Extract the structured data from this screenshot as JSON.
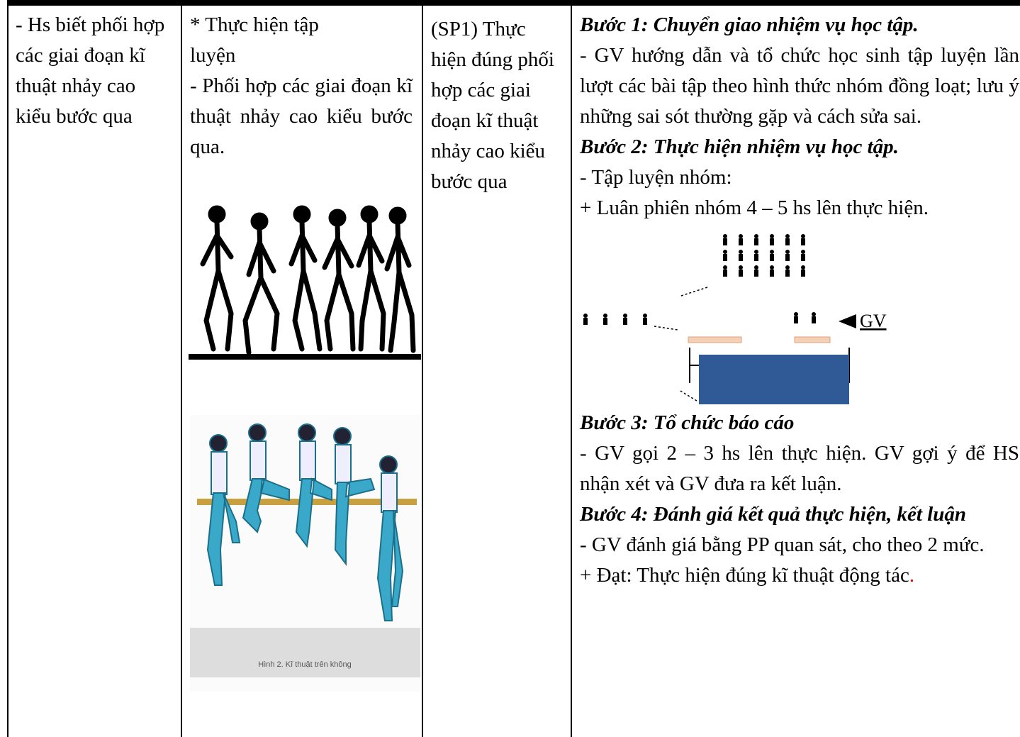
{
  "table": {
    "rows": [
      {
        "objective": "- Hs biết phối hợp các giai đoạn kĩ thuật nhảy cao kiểu bước qua",
        "content": {
          "heading": "* Thực hiện tập luyện",
          "text": "- Phối hợp các giai đoạn kĩ thuật nhảy cao kiểu bước qua.",
          "figure_caption": "Hình 2. Kĩ thuật trên không"
        },
        "product": "(SP1) Thực hiện đúng phối hợp các giai đoạn kĩ thuật nhảy cao kiểu bước qua",
        "steps": [
          {
            "heading": "Bước 1: Chuyển giao nhiệm vụ học tập.",
            "items": [
              "- GV hướng dẫn và tổ chức học sinh tập luyện lần lượt các bài tập theo hình thức nhóm đồng loạt; lưu ý những sai sót thường gặp và cách sửa sai."
            ]
          },
          {
            "heading": "Bước 2: Thực hiện nhiệm vụ học tập.",
            "items": [
              "- Tập luyện nhóm:",
              "+ Luân phiên nhóm  4 – 5 hs lên thực hiện."
            ],
            "diagram_label": "GV"
          },
          {
            "heading": "Bước 3: Tổ chức báo cáo",
            "items": [
              "- GV gọi 2 – 3 hs lên thực hiện. GV gợi ý để HS nhận xét và GV đưa ra kết luận."
            ]
          },
          {
            "heading": "Bước 4: Đánh giá kết quả thực hiện, kết luận",
            "items": [
              " - GV đánh giá bằng PP quan sát, cho theo 2 mức.",
              "+ Đạt: Thực hiện đúng kĩ thuật động tác"
            ],
            "end": "."
          }
        ]
      }
    ]
  }
}
